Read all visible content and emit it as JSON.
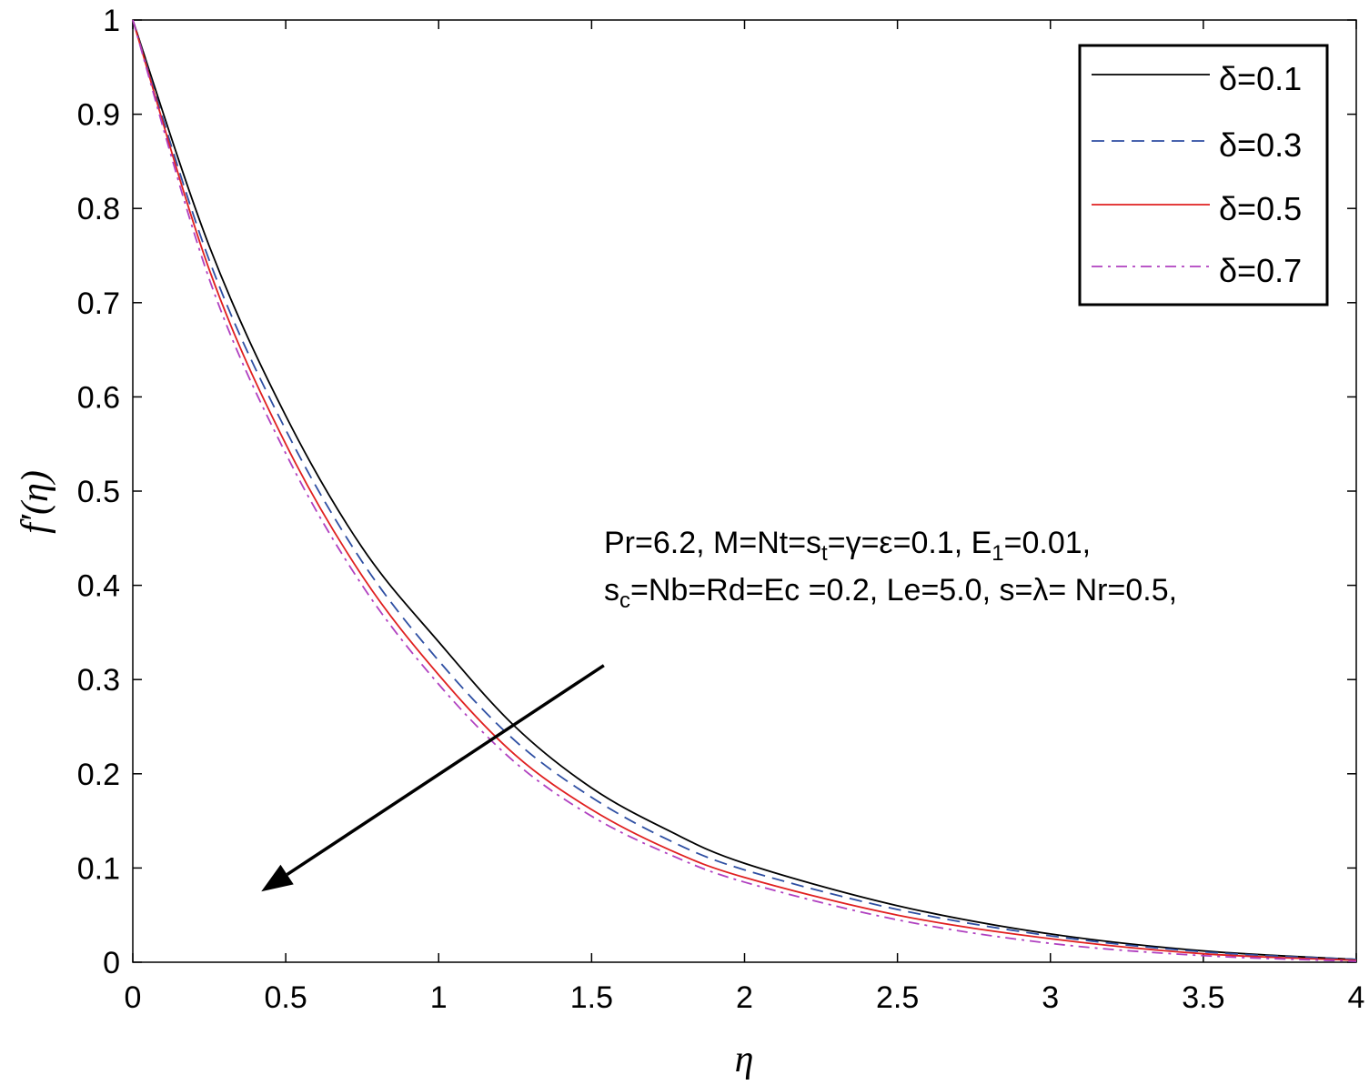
{
  "chart_data": {
    "type": "line",
    "xlabel": "η",
    "ylabel": "f′(η)",
    "xlim": [
      0,
      4
    ],
    "ylim": [
      0,
      1
    ],
    "xticks": [
      "0",
      "0.5",
      "1",
      "1.5",
      "2",
      "2.5",
      "3",
      "3.5",
      "4"
    ],
    "yticks": [
      "0",
      "0.1",
      "0.2",
      "0.3",
      "0.4",
      "0.5",
      "0.6",
      "0.7",
      "0.8",
      "0.9",
      "1"
    ],
    "grid": false,
    "legend_position": "top-right",
    "x": [
      0,
      0.25,
      0.5,
      0.75,
      1.0,
      1.25,
      1.5,
      1.75,
      2.0,
      2.5,
      3.0,
      3.5,
      4.0
    ],
    "series": [
      {
        "name": "δ=0.1",
        "color": "#000000",
        "dash": "solid",
        "values": [
          1.0,
          0.76,
          0.58,
          0.44,
          0.34,
          0.25,
          0.185,
          0.14,
          0.105,
          0.06,
          0.03,
          0.012,
          0.003
        ]
      },
      {
        "name": "δ=0.3",
        "color": "#2e4fa3",
        "dash": "dashed",
        "values": [
          1.0,
          0.745,
          0.565,
          0.425,
          0.32,
          0.235,
          0.175,
          0.13,
          0.098,
          0.056,
          0.028,
          0.011,
          0.003
        ]
      },
      {
        "name": "δ=0.5",
        "color": "#e02020",
        "dash": "solid",
        "values": [
          1.0,
          0.735,
          0.55,
          0.41,
          0.305,
          0.22,
          0.162,
          0.12,
          0.09,
          0.05,
          0.025,
          0.009,
          0.002
        ]
      },
      {
        "name": "δ=0.7",
        "color": "#b040c0",
        "dash": "dashdot",
        "values": [
          1.0,
          0.725,
          0.54,
          0.4,
          0.295,
          0.212,
          0.155,
          0.115,
          0.085,
          0.045,
          0.02,
          0.007,
          0.001
        ]
      }
    ],
    "annotation": {
      "line1": {
        "a": "Pr=6.2, M=Nt=s",
        "sub1": "t",
        "b": "=γ=ε=0.1, E",
        "sub2": "1",
        "c": "=0.01,"
      },
      "line2": {
        "a": "s",
        "sub1": "c",
        "b": "=Nb=Rd=Ec =0.2, Le=5.0, s=λ= Nr=0.5,"
      }
    },
    "arrow": {
      "from": [
        1.54,
        0.315
      ],
      "to": [
        0.42,
        0.075
      ]
    }
  }
}
